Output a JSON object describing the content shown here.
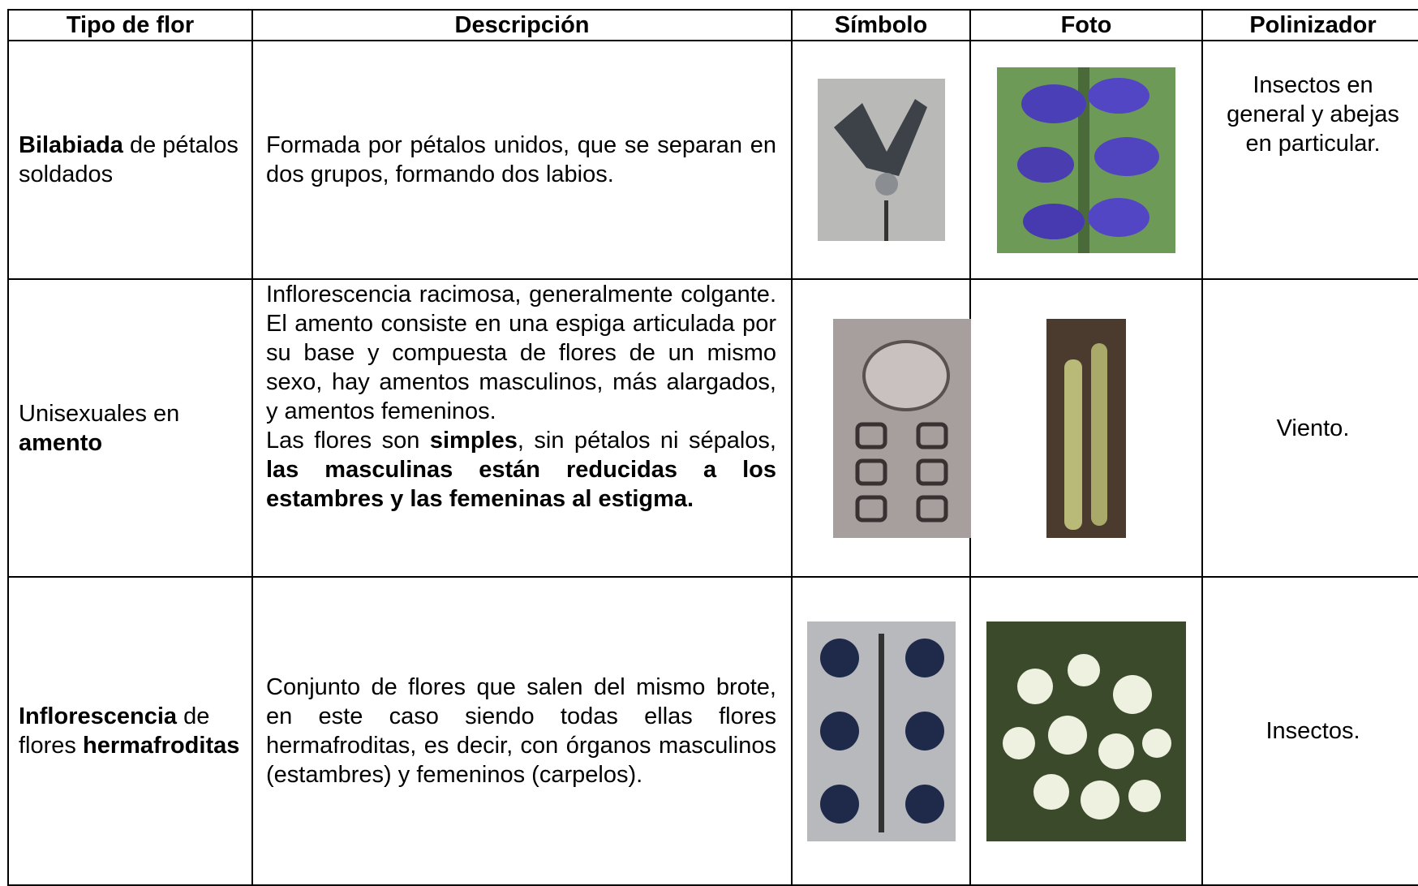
{
  "table": {
    "headers": [
      "Tipo de flor",
      "Descripción",
      "Símbolo",
      "Foto",
      "Polinizador"
    ],
    "rows": [
      {
        "flower": [
          {
            "text": "Bilabiada",
            "bold": true
          },
          {
            "text": " de pétalos soldados"
          }
        ],
        "description": [
          [
            {
              "text": "Formada por pétalos unidos, que se separan en dos grupos, formando dos labios."
            }
          ]
        ],
        "pollinator": "Insectos en general y abejas en particular."
      },
      {
        "flower": [
          {
            "text": "Unisexuales en "
          },
          {
            "text": "amento",
            "bold": true
          }
        ],
        "description": [
          [
            {
              "text": "Inflorescencia racimosa, generalmente colgante. El amento consiste en una espiga articulada por su base y compuesta de flores de un mismo sexo, hay amentos masculinos, más alargados, y amentos femeninos."
            }
          ],
          [
            {
              "text": "Las flores son "
            },
            {
              "text": "simples",
              "bold": true
            },
            {
              "text": ", sin pétalos ni sépalos, "
            },
            {
              "text": "las masculinas están reducidas a los estambres y las femeninas al estigma.",
              "bold": true
            }
          ]
        ],
        "pollinator": "Viento."
      },
      {
        "flower": [
          {
            "text": "Inflorescencia",
            "bold": true
          },
          {
            "text": " de flores "
          },
          {
            "text": "hermafroditas",
            "bold": true
          }
        ],
        "description": [
          [
            {
              "text": "Conjunto de flores que salen del mismo brote, en este caso siendo todas ellas flores hermafroditas, es decir, con órganos masculinos (estambres) y femeninos (carpelos)."
            }
          ]
        ],
        "pollinator": "Insectos."
      }
    ]
  }
}
